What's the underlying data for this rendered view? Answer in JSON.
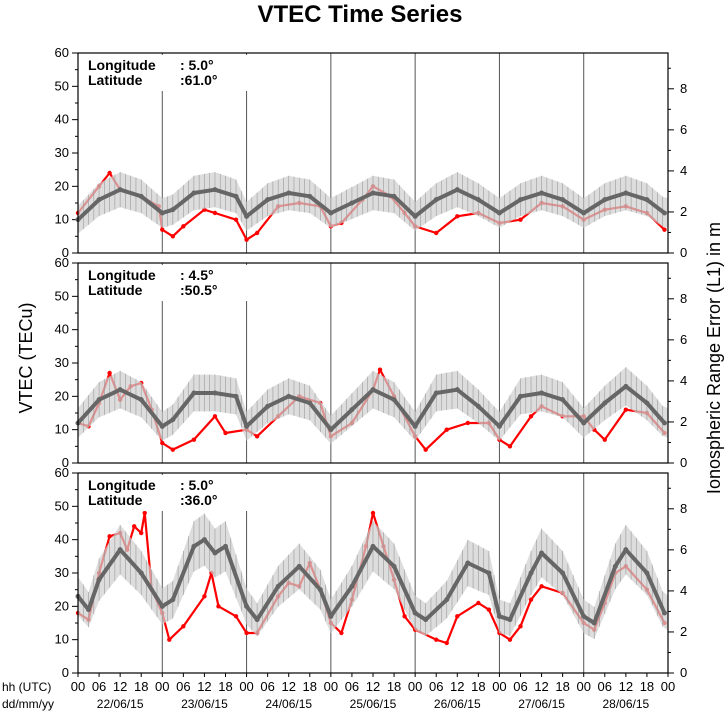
{
  "chart_data": {
    "type": "line",
    "title": "VTEC Time Series",
    "ylabel_left": "VTEC (TECu)",
    "ylabel_right": "Ionospheric Range Error (L1) in m",
    "x_axis": {
      "row_label": "hh (UTC)",
      "date_row_label": "dd/mm/yy",
      "hour_ticks": [
        "00",
        "06",
        "12",
        "18"
      ],
      "final_tick": "00",
      "dates": [
        "22/06/15",
        "23/06/15",
        "24/06/15",
        "25/06/15",
        "26/06/15",
        "27/06/15",
        "28/06/15"
      ]
    },
    "ylim_left": [
      0,
      60
    ],
    "left_ticks": [
      0,
      10,
      20,
      30,
      40,
      50,
      60
    ],
    "right_ticks": [
      0,
      2,
      4,
      6,
      8
    ],
    "meters_per_tecu": 0.1624,
    "panels": [
      {
        "longitude_label": "Longitude",
        "latitude_label": "Latitude",
        "longitude": ":   5.0°",
        "latitude": ":61.0°",
        "series": [
          {
            "color": "#ff0000",
            "points": [
              [
                0,
                12
              ],
              [
                6,
                20
              ],
              [
                9,
                24
              ],
              [
                12,
                19
              ],
              [
                18,
                17
              ],
              [
                23,
                14
              ],
              [
                24,
                7
              ],
              [
                27,
                5
              ],
              [
                30,
                8
              ],
              [
                36,
                13
              ],
              [
                39,
                12
              ],
              [
                45,
                10
              ],
              [
                48,
                4
              ],
              [
                51,
                6
              ],
              [
                57,
                14
              ],
              [
                63,
                15
              ],
              [
                69,
                14
              ],
              [
                72,
                8
              ],
              [
                75,
                9
              ],
              [
                81,
                16
              ],
              [
                84,
                20
              ],
              [
                89,
                17
              ],
              [
                93,
                12
              ],
              [
                96,
                8
              ],
              [
                102,
                6
              ],
              [
                108,
                11
              ],
              [
                114,
                12
              ],
              [
                120,
                9
              ],
              [
                126,
                10
              ],
              [
                132,
                15
              ],
              [
                138,
                14
              ],
              [
                144,
                10
              ],
              [
                150,
                13
              ],
              [
                156,
                14
              ],
              [
                162,
                12
              ],
              [
                167,
                7
              ]
            ]
          },
          {
            "color": "#666666",
            "points": [
              [
                0,
                10
              ],
              [
                6,
                16
              ],
              [
                12,
                19
              ],
              [
                18,
                17
              ],
              [
                24,
                12
              ],
              [
                27,
                13
              ],
              [
                33,
                18
              ],
              [
                39,
                19
              ],
              [
                45,
                17
              ],
              [
                48,
                11
              ],
              [
                54,
                16
              ],
              [
                60,
                18
              ],
              [
                66,
                17
              ],
              [
                72,
                12
              ],
              [
                78,
                15
              ],
              [
                84,
                18
              ],
              [
                90,
                17
              ],
              [
                96,
                11
              ],
              [
                102,
                16
              ],
              [
                108,
                19
              ],
              [
                114,
                16
              ],
              [
                120,
                12
              ],
              [
                126,
                16
              ],
              [
                132,
                18
              ],
              [
                138,
                16
              ],
              [
                144,
                12
              ],
              [
                150,
                16
              ],
              [
                156,
                18
              ],
              [
                162,
                16
              ],
              [
                167,
                12
              ]
            ]
          }
        ]
      },
      {
        "longitude_label": "Longitude",
        "latitude_label": "Latitude",
        "longitude": ":   4.5°",
        "latitude": ":50.5°",
        "series": [
          {
            "color": "#ff0000",
            "points": [
              [
                0,
                12
              ],
              [
                3,
                11
              ],
              [
                6,
                18
              ],
              [
                9,
                27
              ],
              [
                12,
                19
              ],
              [
                15,
                23
              ],
              [
                18,
                24
              ],
              [
                21,
                16
              ],
              [
                24,
                6
              ],
              [
                27,
                4
              ],
              [
                33,
                7
              ],
              [
                39,
                14
              ],
              [
                42,
                9
              ],
              [
                48,
                10
              ],
              [
                51,
                8
              ],
              [
                57,
                14
              ],
              [
                63,
                20
              ],
              [
                69,
                18
              ],
              [
                72,
                8
              ],
              [
                78,
                12
              ],
              [
                84,
                22
              ],
              [
                86,
                28
              ],
              [
                90,
                20
              ],
              [
                96,
                8
              ],
              [
                99,
                4
              ],
              [
                105,
                10
              ],
              [
                111,
                12
              ],
              [
                117,
                12
              ],
              [
                120,
                7
              ],
              [
                123,
                5
              ],
              [
                129,
                14
              ],
              [
                132,
                17
              ],
              [
                138,
                14
              ],
              [
                144,
                14
              ],
              [
                147,
                10
              ],
              [
                150,
                7
              ],
              [
                156,
                16
              ],
              [
                162,
                15
              ],
              [
                167,
                9
              ]
            ]
          },
          {
            "color": "#666666",
            "points": [
              [
                0,
                12
              ],
              [
                6,
                19
              ],
              [
                12,
                22
              ],
              [
                18,
                19
              ],
              [
                24,
                11
              ],
              [
                27,
                13
              ],
              [
                33,
                21
              ],
              [
                39,
                21
              ],
              [
                45,
                20
              ],
              [
                48,
                11
              ],
              [
                54,
                17
              ],
              [
                60,
                20
              ],
              [
                66,
                18
              ],
              [
                72,
                10
              ],
              [
                78,
                16
              ],
              [
                84,
                22
              ],
              [
                90,
                19
              ],
              [
                96,
                11
              ],
              [
                102,
                21
              ],
              [
                108,
                22
              ],
              [
                114,
                17
              ],
              [
                120,
                11
              ],
              [
                126,
                20
              ],
              [
                132,
                21
              ],
              [
                138,
                19
              ],
              [
                144,
                12
              ],
              [
                150,
                18
              ],
              [
                156,
                23
              ],
              [
                162,
                18
              ],
              [
                167,
                12
              ]
            ]
          }
        ]
      },
      {
        "longitude_label": "Longitude",
        "latitude_label": "Latitude",
        "longitude": ":   5.0°",
        "latitude": ":36.0°",
        "series": [
          {
            "color": "#ff0000",
            "points": [
              [
                0,
                18
              ],
              [
                3,
                16
              ],
              [
                6,
                30
              ],
              [
                9,
                41
              ],
              [
                12,
                42
              ],
              [
                14,
                37
              ],
              [
                16,
                44
              ],
              [
                18,
                42
              ],
              [
                19,
                48
              ],
              [
                21,
                25
              ],
              [
                24,
                18
              ],
              [
                26,
                10
              ],
              [
                30,
                14
              ],
              [
                36,
                23
              ],
              [
                38,
                30
              ],
              [
                40,
                20
              ],
              [
                45,
                17
              ],
              [
                48,
                12
              ],
              [
                51,
                12
              ],
              [
                57,
                23
              ],
              [
                60,
                27
              ],
              [
                63,
                26
              ],
              [
                66,
                33
              ],
              [
                69,
                25
              ],
              [
                72,
                15
              ],
              [
                75,
                12
              ],
              [
                78,
                22
              ],
              [
                82,
                38
              ],
              [
                84,
                48
              ],
              [
                87,
                38
              ],
              [
                90,
                28
              ],
              [
                93,
                17
              ],
              [
                96,
                13
              ],
              [
                102,
                10
              ],
              [
                105,
                9
              ],
              [
                108,
                17
              ],
              [
                114,
                21
              ],
              [
                117,
                19
              ],
              [
                120,
                12
              ],
              [
                123,
                10
              ],
              [
                126,
                14
              ],
              [
                129,
                22
              ],
              [
                132,
                26
              ],
              [
                138,
                24
              ],
              [
                144,
                15
              ],
              [
                147,
                13
              ],
              [
                150,
                21
              ],
              [
                153,
                30
              ],
              [
                156,
                32
              ],
              [
                162,
                25
              ],
              [
                167,
                15
              ]
            ]
          },
          {
            "color": "#666666",
            "points": [
              [
                0,
                23
              ],
              [
                3,
                19
              ],
              [
                6,
                28
              ],
              [
                12,
                37
              ],
              [
                18,
                30
              ],
              [
                24,
                20
              ],
              [
                27,
                22
              ],
              [
                33,
                38
              ],
              [
                36,
                40
              ],
              [
                39,
                36
              ],
              [
                42,
                38
              ],
              [
                48,
                20
              ],
              [
                51,
                16
              ],
              [
                57,
                26
              ],
              [
                63,
                32
              ],
              [
                69,
                25
              ],
              [
                72,
                17
              ],
              [
                78,
                26
              ],
              [
                84,
                38
              ],
              [
                90,
                32
              ],
              [
                96,
                18
              ],
              [
                99,
                16
              ],
              [
                105,
                22
              ],
              [
                111,
                33
              ],
              [
                117,
                30
              ],
              [
                120,
                17
              ],
              [
                123,
                16
              ],
              [
                129,
                30
              ],
              [
                132,
                36
              ],
              [
                138,
                30
              ],
              [
                144,
                17
              ],
              [
                147,
                15
              ],
              [
                153,
                32
              ],
              [
                156,
                37
              ],
              [
                162,
                30
              ],
              [
                167,
                18
              ]
            ]
          }
        ]
      }
    ]
  }
}
